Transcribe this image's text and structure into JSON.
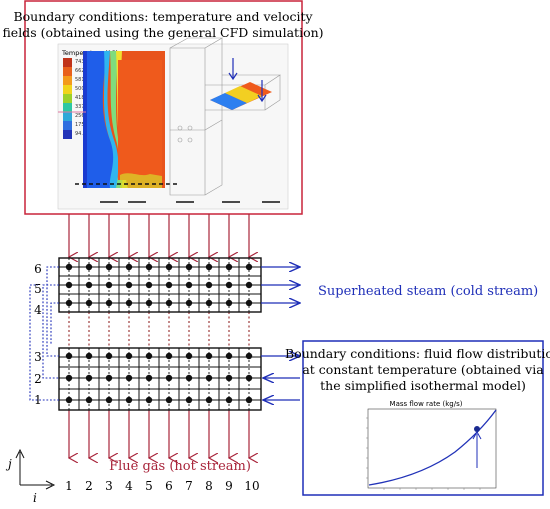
{
  "top_box": {
    "title_line1": "Boundary conditions: temperature and velocity",
    "title_line2": "fields (obtained using the general CFD simulation)",
    "colorbar_title": "Temperature (°C)",
    "colorbar_ticks": [
      "743.5",
      "662.3",
      "581.2",
      "500.0",
      "418.8",
      "337.7",
      "256.5",
      "175.4",
      "94.2"
    ],
    "colorbar_colors": [
      "#c0331a",
      "#e8601c",
      "#f39a1c",
      "#f0d41c",
      "#9bd12b",
      "#2cc7a3",
      "#2fa8d8",
      "#2f6fe0",
      "#2233b8"
    ]
  },
  "grid": {
    "row_labels_top": [
      "6",
      "5",
      "4"
    ],
    "row_labels_bottom": [
      "3",
      "2",
      "1"
    ],
    "col_labels": [
      "1",
      "2",
      "3",
      "4",
      "5",
      "6",
      "7",
      "8",
      "9",
      "10"
    ],
    "axis_j": "j",
    "axis_i": "i"
  },
  "labels": {
    "cold_stream": "Superheated steam (cold stream)",
    "hot_stream": "Flue gas (hot stream)"
  },
  "right_box": {
    "title_line1": "Boundary conditions: fluid flow distribution",
    "title_line2": "at constant temperature (obtained via",
    "title_line3": "the simplified isothermal model)",
    "chart_title": "Mass flow rate (kg/s)"
  },
  "colors": {
    "red_border": "#c8243a",
    "blue": "#1f2fb8",
    "arrow_red": "#a8243a",
    "dark_red_dash": "#8a1010"
  }
}
